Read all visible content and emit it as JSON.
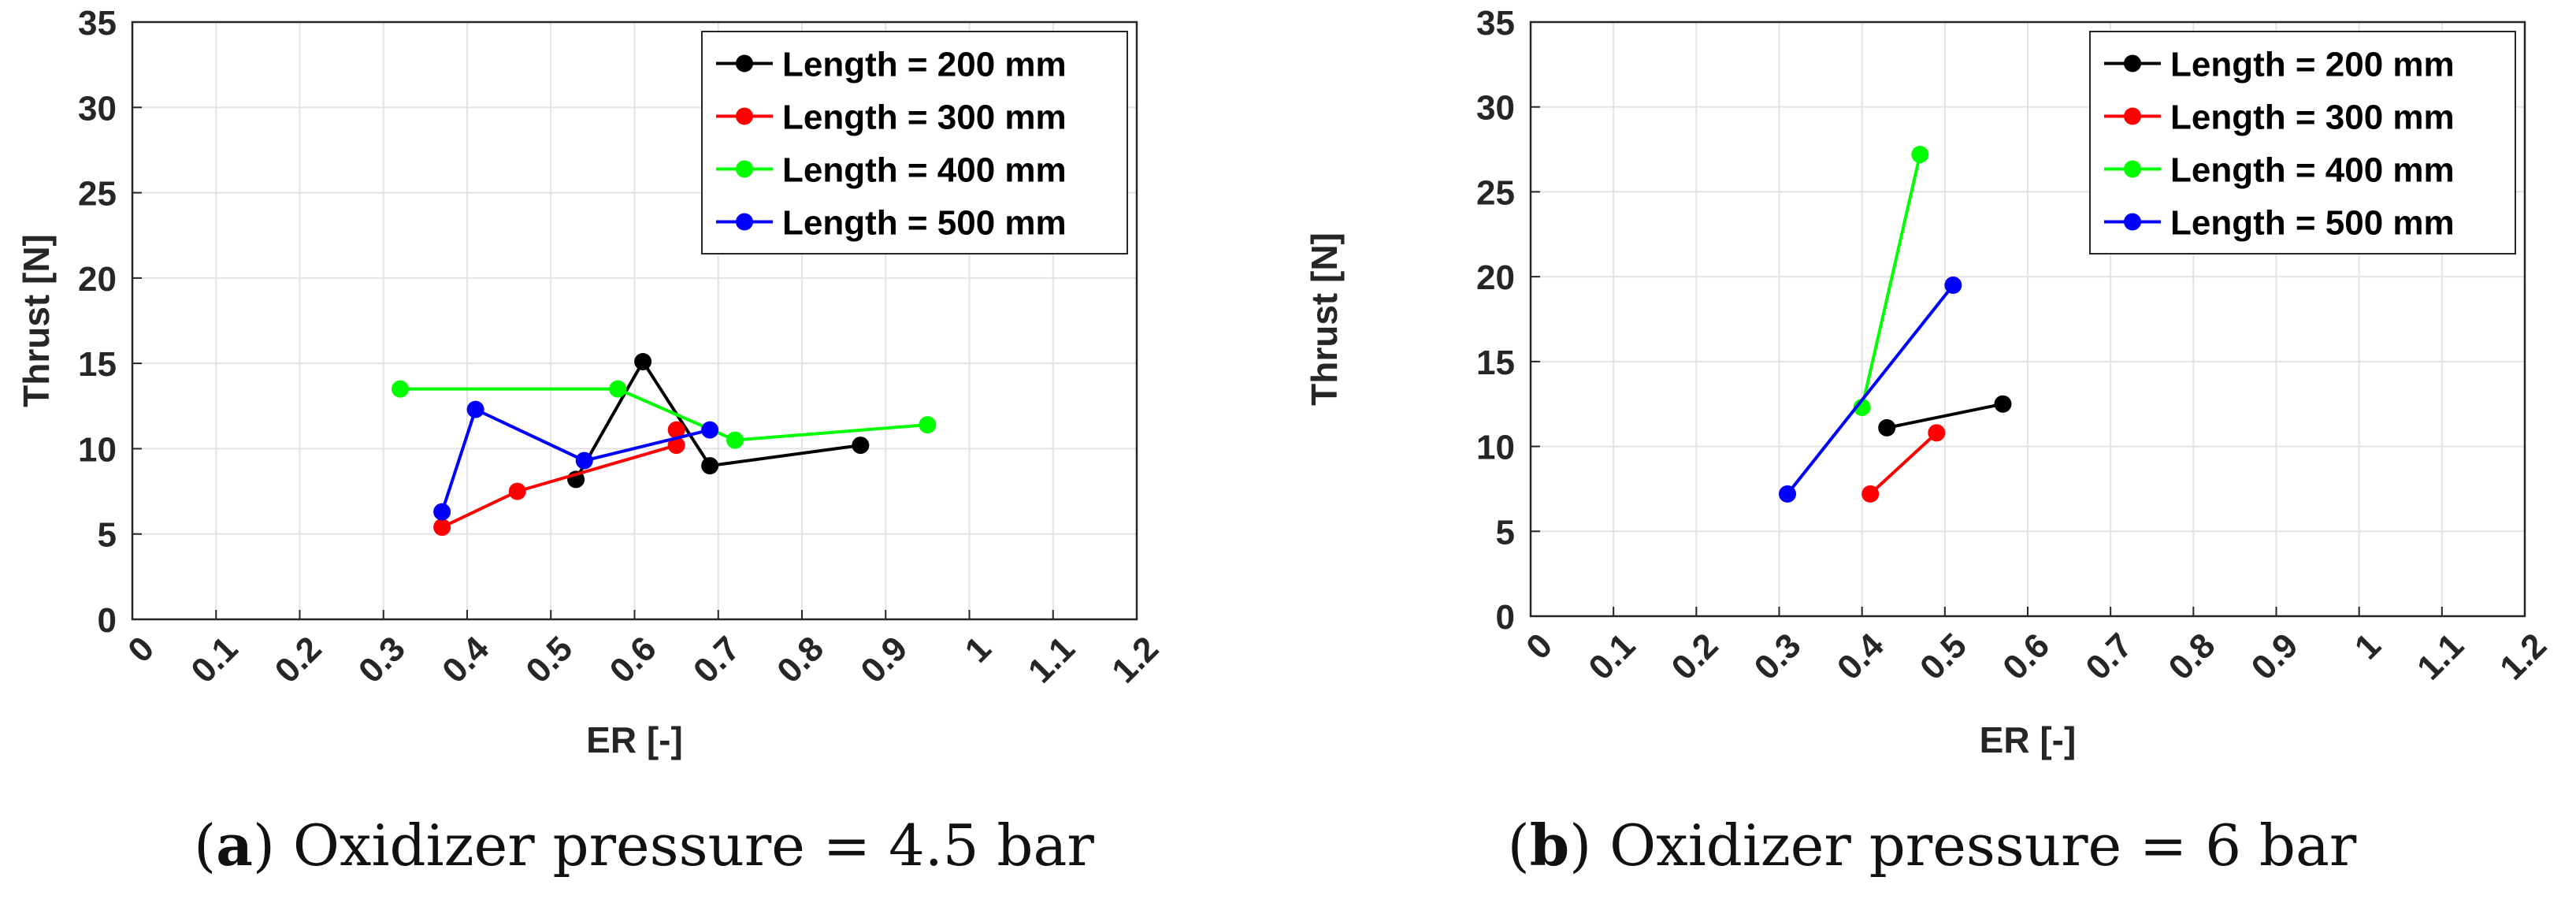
{
  "chart_data": [
    {
      "type": "line",
      "xlabel": "ER [-]",
      "ylabel": "Thrust [N]",
      "xlim": [
        0,
        1.2
      ],
      "ylim": [
        0,
        35
      ],
      "xticks": [
        "0",
        "0.1",
        "0.2",
        "0.3",
        "0.4",
        "0.5",
        "0.6",
        "0.7",
        "0.8",
        "0.9",
        "1",
        "1.1",
        "1.2"
      ],
      "yticks": [
        "0",
        "5",
        "10",
        "15",
        "20",
        "25",
        "30",
        "35"
      ],
      "grid": true,
      "legend": "top-right",
      "caption_label": "a",
      "caption_text": " Oxidizer pressure = 4.5 bar",
      "series": [
        {
          "name": "Length = 200 mm",
          "color": "#000000",
          "points": [
            [
              0.53,
              8.2
            ],
            [
              0.61,
              15.1
            ],
            [
              0.69,
              9.0
            ],
            [
              0.87,
              10.2
            ]
          ]
        },
        {
          "name": "Length = 300 mm",
          "color": "#ff0000",
          "points": [
            [
              0.37,
              5.4
            ],
            [
              0.46,
              7.5
            ],
            [
              0.65,
              10.2
            ],
            [
              0.65,
              11.1
            ]
          ]
        },
        {
          "name": "Length = 400 mm",
          "color": "#00ff00",
          "points": [
            [
              0.32,
              13.5
            ],
            [
              0.58,
              13.5
            ],
            [
              0.72,
              10.5
            ],
            [
              0.95,
              11.4
            ]
          ]
        },
        {
          "name": "Length = 500 mm",
          "color": "#0000ff",
          "points": [
            [
              0.37,
              6.3
            ],
            [
              0.41,
              12.3
            ],
            [
              0.54,
              9.3
            ],
            [
              0.69,
              11.1
            ]
          ]
        }
      ]
    },
    {
      "type": "line",
      "xlabel": "ER [-]",
      "ylabel": "Thrust [N]",
      "xlim": [
        0,
        1.2
      ],
      "ylim": [
        0,
        35
      ],
      "xticks": [
        "0",
        "0.1",
        "0.2",
        "0.3",
        "0.4",
        "0.5",
        "0.6",
        "0.7",
        "0.8",
        "0.9",
        "1",
        "1.1",
        "1.2"
      ],
      "yticks": [
        "0",
        "5",
        "10",
        "15",
        "20",
        "25",
        "30",
        "35"
      ],
      "grid": true,
      "legend": "top-right",
      "caption_label": "b",
      "caption_text": " Oxidizer pressure = 6 bar",
      "series": [
        {
          "name": "Length = 200 mm",
          "color": "#000000",
          "points": [
            [
              0.43,
              11.1
            ],
            [
              0.57,
              12.5
            ]
          ]
        },
        {
          "name": "Length = 300 mm",
          "color": "#ff0000",
          "points": [
            [
              0.41,
              7.2
            ],
            [
              0.49,
              10.8
            ]
          ]
        },
        {
          "name": "Length = 400 mm",
          "color": "#00ff00",
          "points": [
            [
              0.4,
              12.3
            ],
            [
              0.47,
              27.2
            ]
          ]
        },
        {
          "name": "Length = 500 mm",
          "color": "#0000ff",
          "points": [
            [
              0.31,
              7.2
            ],
            [
              0.51,
              19.5
            ]
          ]
        }
      ]
    }
  ]
}
